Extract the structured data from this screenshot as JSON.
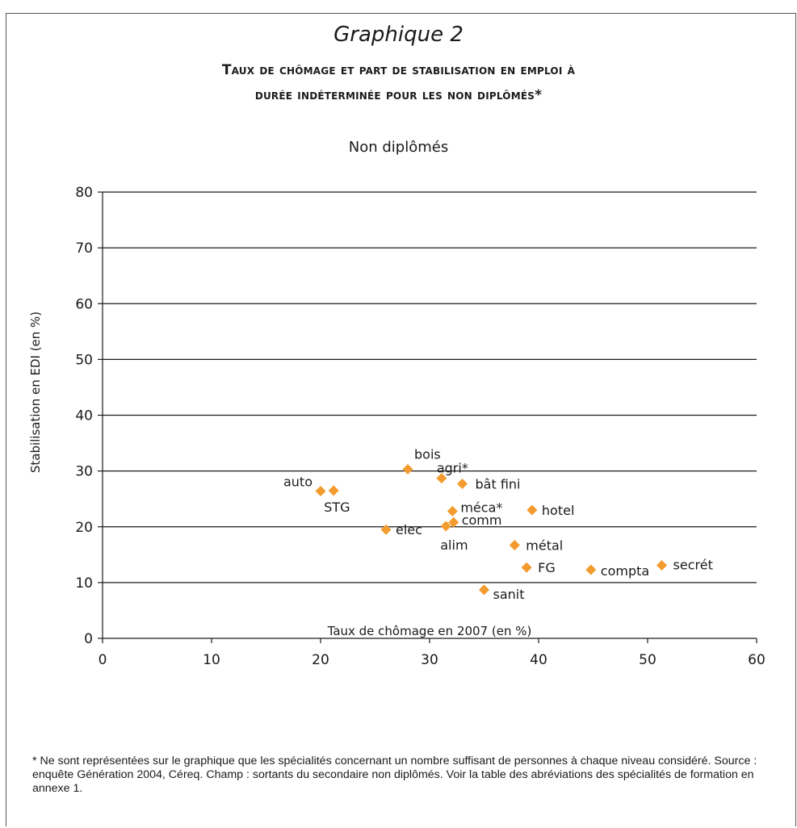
{
  "graph_label": "Graphique 2",
  "main_title_line1": "Taux de chômage et part de stabilisation en emploi à",
  "main_title_line2": "durée indéterminée pour les non diplômés*",
  "footnote": "* Ne sont représentées sur le graphique que les spécialités concernant un nombre suffisant de personnes à chaque niveau considéré. Source : enquête Génération 2004, Céreq. Champ : sortants du secondaire non diplômés. Voir la table des abréviations des spécialités de formation en annexe 1.",
  "colors": {
    "marker": "#f39b2e",
    "grid": "#1a1a1a"
  },
  "chart_data": {
    "type": "scatter",
    "title": "Non diplômés",
    "xlabel": "Taux de chômage en 2007 (en %)",
    "ylabel": "Stabilisation en EDI (en %)",
    "xlim": [
      0,
      60
    ],
    "ylim": [
      0,
      80
    ],
    "xticks": [
      0,
      10,
      20,
      30,
      40,
      50,
      60
    ],
    "yticks": [
      0,
      10,
      20,
      30,
      40,
      50,
      60,
      70,
      80
    ],
    "grid": "horizontal",
    "legend": "none",
    "points": [
      {
        "label": "bois",
        "x": 28.0,
        "y": 30.3
      },
      {
        "label": "agri*",
        "x": 31.1,
        "y": 28.7
      },
      {
        "label": "bât fini",
        "x": 33.0,
        "y": 27.7
      },
      {
        "label": "auto",
        "x": 20.0,
        "y": 26.4
      },
      {
        "label": "STG",
        "x": 21.2,
        "y": 26.5
      },
      {
        "label": "méca*",
        "x": 32.1,
        "y": 22.8
      },
      {
        "label": "hotel",
        "x": 39.4,
        "y": 23.0
      },
      {
        "label": "comm",
        "x": 32.2,
        "y": 20.8
      },
      {
        "label": "alim",
        "x": 31.5,
        "y": 20.1
      },
      {
        "label": "elec",
        "x": 26.0,
        "y": 19.5
      },
      {
        "label": "métal",
        "x": 37.8,
        "y": 16.7
      },
      {
        "label": "FG",
        "x": 38.9,
        "y": 12.7
      },
      {
        "label": "compta",
        "x": 44.8,
        "y": 12.3
      },
      {
        "label": "secrét",
        "x": 51.3,
        "y": 13.1
      },
      {
        "label": "sanit",
        "x": 35.0,
        "y": 8.7
      }
    ]
  }
}
